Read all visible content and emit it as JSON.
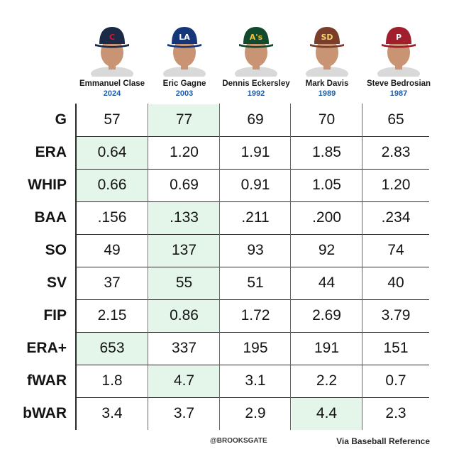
{
  "colors": {
    "highlight": "#e4f5ea",
    "year": "#1f5ea8",
    "grid": "#2a2a2a"
  },
  "players": [
    {
      "name": "Emmanuel Clase",
      "year": "2024",
      "team_icon": "guardians-cap-icon",
      "cap_color": "#1b2a47",
      "logo_color": "#d6162c",
      "logo": "C"
    },
    {
      "name": "Eric Gagne",
      "year": "2003",
      "team_icon": "dodgers-cap-icon",
      "cap_color": "#16367a",
      "logo_color": "#ffffff",
      "logo": "LA"
    },
    {
      "name": "Dennis Eckersley",
      "year": "1992",
      "team_icon": "athletics-cap-icon",
      "cap_color": "#124a2e",
      "logo_color": "#f2c230",
      "logo": "A's"
    },
    {
      "name": "Mark Davis",
      "year": "1989",
      "team_icon": "padres-cap-icon",
      "cap_color": "#7a3e2a",
      "logo_color": "#f2d26a",
      "logo": "SD"
    },
    {
      "name": "Steve Bedrosian",
      "year": "1987",
      "team_icon": "phillies-cap-icon",
      "cap_color": "#a11f2c",
      "logo_color": "#ffffff",
      "logo": "P"
    }
  ],
  "chart_data": {
    "type": "table",
    "columns": [
      "Emmanuel Clase 2024",
      "Eric Gagne 2003",
      "Dennis Eckersley 1992",
      "Mark Davis 1989",
      "Steve Bedrosian 1987"
    ],
    "rows": [
      {
        "stat": "G",
        "values": [
          "57",
          "77",
          "69",
          "70",
          "65"
        ],
        "best": 1
      },
      {
        "stat": "ERA",
        "values": [
          "0.64",
          "1.20",
          "1.91",
          "1.85",
          "2.83"
        ],
        "best": 0
      },
      {
        "stat": "WHIP",
        "values": [
          "0.66",
          "0.69",
          "0.91",
          "1.05",
          "1.20"
        ],
        "best": 0
      },
      {
        "stat": "BAA",
        "values": [
          ".156",
          ".133",
          ".211",
          ".200",
          ".234"
        ],
        "best": 1
      },
      {
        "stat": "SO",
        "values": [
          "49",
          "137",
          "93",
          "92",
          "74"
        ],
        "best": 1
      },
      {
        "stat": "SV",
        "values": [
          "37",
          "55",
          "51",
          "44",
          "40"
        ],
        "best": 1
      },
      {
        "stat": "FIP",
        "values": [
          "2.15",
          "0.86",
          "1.72",
          "2.69",
          "3.79"
        ],
        "best": 1
      },
      {
        "stat": "ERA+",
        "values": [
          "653",
          "337",
          "195",
          "191",
          "151"
        ],
        "best": 0
      },
      {
        "stat": "fWAR",
        "values": [
          "1.8",
          "4.7",
          "3.1",
          "2.2",
          "0.7"
        ],
        "best": 1
      },
      {
        "stat": "bWAR",
        "values": [
          "3.4",
          "3.7",
          "2.9",
          "4.4",
          "2.3"
        ],
        "best": 3
      }
    ]
  },
  "footer": {
    "handle": "@BROOKSGATE",
    "source": "Via Baseball Reference"
  }
}
